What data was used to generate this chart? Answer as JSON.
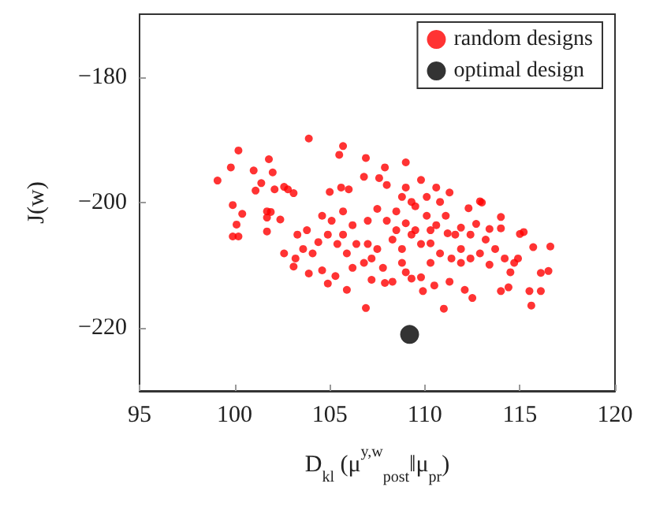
{
  "chart_data": {
    "type": "scatter",
    "xlabel": "D$_{kl}$ (μ$^{y,w}$$_{post}$‖μ$_{pr}$)",
    "ylabel": "J(w)",
    "xlim": [
      95,
      120
    ],
    "xticks": [
      95,
      100,
      105,
      110,
      115,
      120
    ],
    "ylim": [
      -230,
      -170
    ],
    "yticks": [
      -220,
      -200,
      -180
    ],
    "grid": false,
    "legend": "top right",
    "marker": "circle",
    "series": [
      {
        "name": "random designs",
        "color": "#ff0000",
        "x": [
          99.1,
          99.8,
          100.2,
          99.9,
          100.1,
          99.9,
          100.2,
          100.4,
          101.0,
          101.4,
          101.1,
          101.8,
          102.0,
          102.1,
          101.7,
          101.9,
          101.7,
          101.7,
          102.4,
          102.6,
          102.8,
          103.1,
          103.9,
          102.6,
          103.1,
          103.9,
          104.6,
          104.9,
          105.3,
          105.5,
          105.7,
          105.6,
          105.0,
          106.0,
          106.9,
          106.8,
          105.9,
          106.9,
          107.9,
          107.6,
          109.0,
          109.8,
          109.0,
          108.0,
          110.6,
          111.3,
          112.3,
          112.9,
          113.0,
          114.0,
          114.0,
          111.0,
          111.3,
          112.1,
          112.5,
          114.0,
          114.4,
          115.5,
          115.6,
          116.1,
          116.1,
          116.5,
          116.6,
          115.7,
          115.2,
          115.0,
          114.9,
          114.5,
          113.4,
          113.4,
          112.7,
          111.9,
          111.2,
          110.3,
          109.8,
          109.9,
          110.5,
          109.3,
          109.0,
          108.3,
          107.9,
          107.2,
          107.8,
          106.8,
          106.2,
          105.9,
          105.4,
          104.9,
          104.4,
          103.8,
          103.3,
          103.6,
          103.2,
          104.1,
          104.6,
          105.1,
          105.7,
          106.2,
          107.0,
          107.5,
          108.0,
          108.5,
          109.0,
          109.5,
          110.1,
          110.6,
          111.1,
          111.6,
          107.0,
          107.5,
          108.3,
          108.8,
          109.3,
          109.8,
          110.8,
          111.4,
          111.9,
          112.4,
          112.9,
          113.7,
          114.2,
          114.7,
          111.9,
          110.3,
          108.8,
          107.2,
          105.7,
          106.4,
          108.5,
          109.5,
          110.3,
          112.4,
          113.2,
          108.8,
          109.3,
          110.1,
          110.8
        ],
        "values": [
          -196.5,
          -194.4,
          -191.7,
          -200.4,
          -203.5,
          -205.4,
          -205.4,
          -201.8,
          -194.9,
          -196.9,
          -198.1,
          -193.1,
          -195.2,
          -197.9,
          -201.4,
          -201.5,
          -202.4,
          -204.6,
          -202.7,
          -197.5,
          -197.9,
          -198.5,
          -189.8,
          -208.1,
          -210.2,
          -211.3,
          -210.8,
          -212.9,
          -211.7,
          -192.4,
          -191,
          -197.6,
          -198.3,
          -197.9,
          -192.9,
          -195.9,
          -213.9,
          -216.8,
          -194.4,
          -196.1,
          -193.6,
          -196.4,
          -197.6,
          -197.2,
          -197.6,
          -198.4,
          -200.9,
          -199.8,
          -200,
          -202.3,
          -204.1,
          -216.9,
          -212.6,
          -213.9,
          -215.2,
          -214.1,
          -213.5,
          -214.1,
          -216.4,
          -214.1,
          -211.2,
          -210.9,
          -207,
          -207.1,
          -204.7,
          -205,
          -208.9,
          -211.1,
          -209.9,
          -204.2,
          -203.4,
          -204,
          -204.9,
          -206.5,
          -211.9,
          -214.1,
          -213.2,
          -212.1,
          -211.1,
          -212.6,
          -212.8,
          -212.3,
          -210.4,
          -209.6,
          -210.4,
          -208.1,
          -206.6,
          -205.1,
          -206.3,
          -204.4,
          -205.1,
          -207.4,
          -208.9,
          -208.1,
          -202.1,
          -202.9,
          -201.4,
          -203.6,
          -202.9,
          -201,
          -202.9,
          -201.4,
          -203.3,
          -200.6,
          -202.1,
          -203.6,
          -202.1,
          -205.1,
          -206.6,
          -207.4,
          -205.9,
          -207.4,
          -205.1,
          -206.6,
          -208.1,
          -208.9,
          -207.4,
          -208.9,
          -208.1,
          -207.4,
          -208.9,
          -209.6,
          -209.6,
          -209.6,
          -209.6,
          -208.9,
          -205.1,
          -206.6,
          -204.4,
          -204.4,
          -204.4,
          -205.1,
          -205.9,
          -199.1,
          -199.9,
          -199.1,
          -199.9
        ]
      },
      {
        "name": "optimal design",
        "color": "#000000",
        "x": [
          109.2
        ],
        "values": [
          -221.0
        ]
      }
    ]
  }
}
